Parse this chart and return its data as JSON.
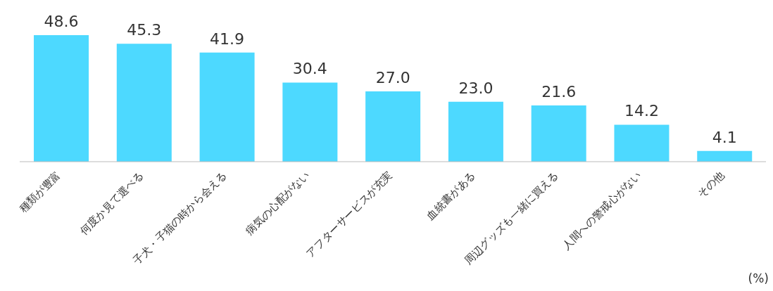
{
  "chart_data": {
    "type": "bar",
    "categories": [
      "種類が豊富",
      "何度か見て選べる",
      "子犬・子猫の時から会える",
      "病気の心配がない",
      "アフターサービスが充実",
      "血統書がある",
      "周辺グッズも一緒に買える",
      "人間への警戒心がない",
      "その他"
    ],
    "values": [
      48.6,
      45.3,
      41.9,
      30.4,
      27.0,
      23.0,
      21.6,
      14.2,
      4.1
    ],
    "value_labels": [
      "48.6",
      "45.3",
      "41.9",
      "30.4",
      "27.0",
      "23.0",
      "21.6",
      "14.2",
      "4.1"
    ],
    "color": "#4dd9ff",
    "annotations": [
      "(%)"
    ],
    "grid": false
  }
}
